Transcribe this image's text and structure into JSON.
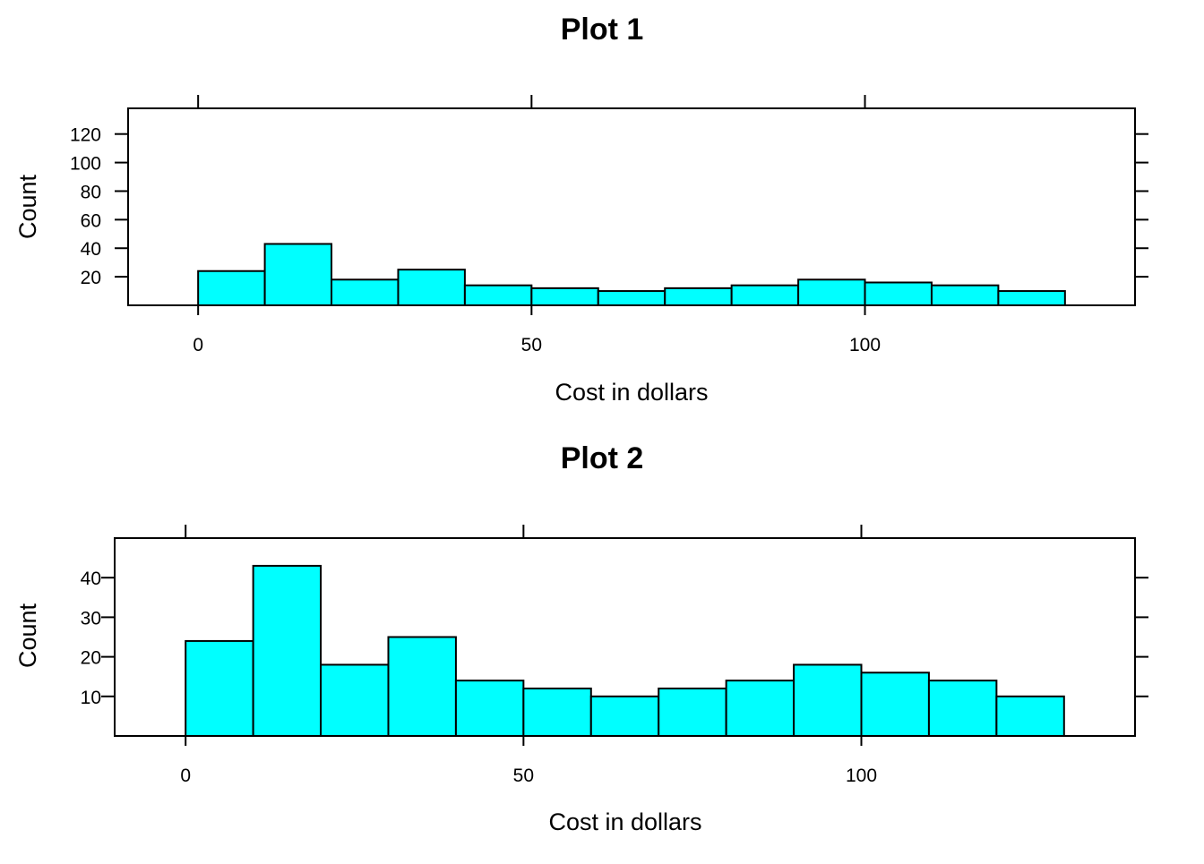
{
  "chart_data": [
    {
      "type": "bar",
      "title": "Plot 1",
      "xlabel": "Cost in dollars",
      "ylabel": "Count",
      "bin_edges": [
        0,
        10,
        20,
        30,
        40,
        50,
        60,
        70,
        80,
        90,
        100,
        110,
        120,
        130
      ],
      "values": [
        24,
        43,
        18,
        25,
        14,
        12,
        10,
        12,
        14,
        18,
        16,
        14,
        10
      ],
      "x_ticks": [
        0,
        50,
        100
      ],
      "y_ticks": [
        20,
        40,
        60,
        80,
        100,
        120
      ],
      "xlim": [
        -10.5,
        140.5
      ],
      "ylim": [
        0,
        138
      ],
      "bar_color": "#00FFFF",
      "grid": false
    },
    {
      "type": "bar",
      "title": "Plot 2",
      "xlabel": "Cost in dollars",
      "ylabel": "Count",
      "bin_edges": [
        0,
        10,
        20,
        30,
        40,
        50,
        60,
        70,
        80,
        90,
        100,
        110,
        120,
        130
      ],
      "values": [
        24,
        43,
        18,
        25,
        14,
        12,
        10,
        12,
        14,
        18,
        16,
        14,
        10
      ],
      "x_ticks": [
        0,
        50,
        100
      ],
      "y_ticks": [
        10,
        20,
        30,
        40
      ],
      "xlim": [
        -10.5,
        140.5
      ],
      "ylim": [
        0,
        50
      ],
      "bar_color": "#00FFFF",
      "grid": false
    }
  ]
}
